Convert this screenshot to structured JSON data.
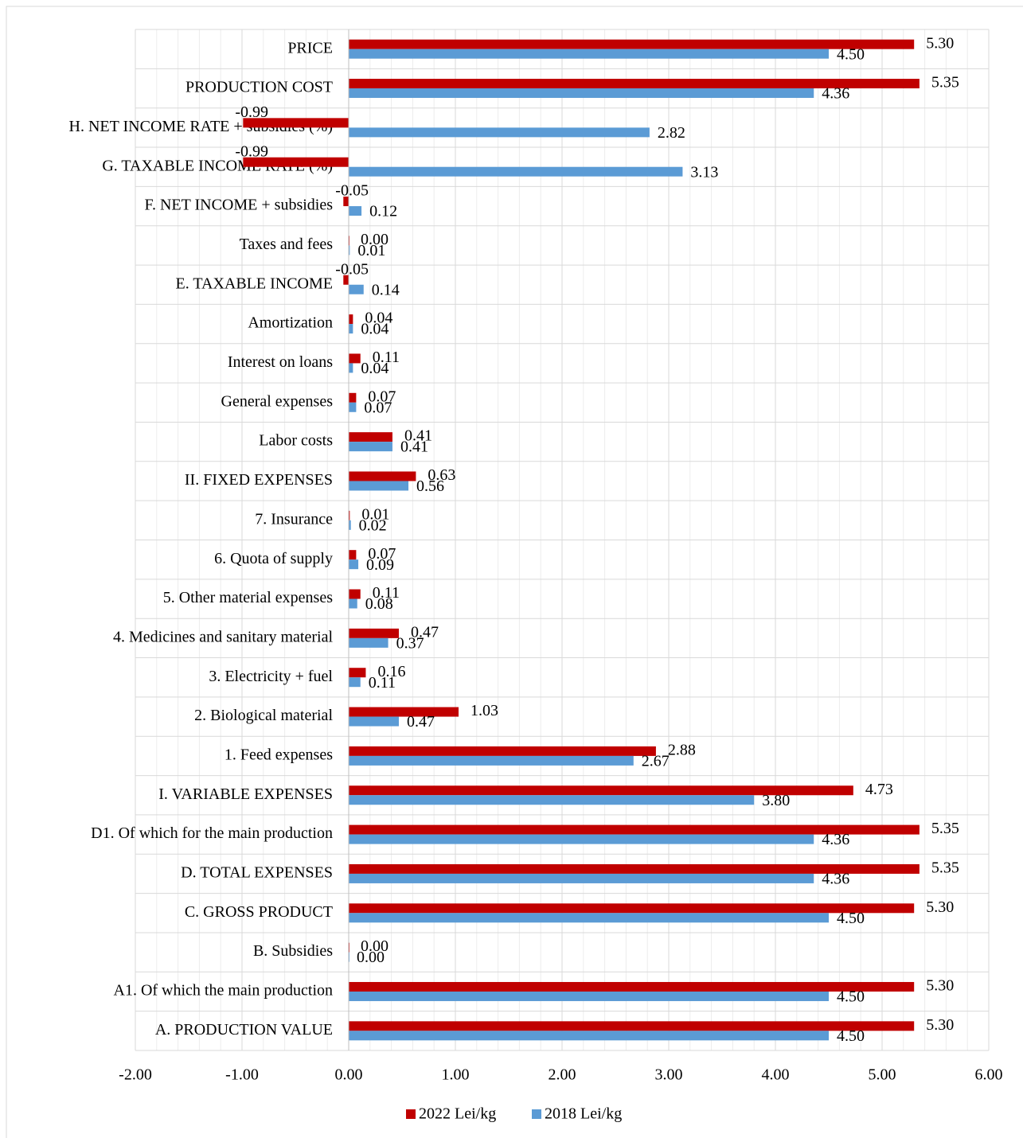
{
  "chart_data": {
    "type": "hbar",
    "categories": [
      "PRICE",
      "PRODUCTION COST",
      "H. NET INCOME RATE + subsidies (%)",
      "G. TAXABLE INCOME RATE (%)",
      "F. NET INCOME + subsidies",
      "Taxes and fees",
      "E. TAXABLE INCOME",
      "Amortization",
      "Interest on loans",
      "General expenses",
      "Labor costs",
      "II. FIXED EXPENSES",
      "7. Insurance",
      "6. Quota of supply",
      "5. Other material expenses",
      "4. Medicines and sanitary material",
      "3. Electricity + fuel",
      "2. Biological material",
      "1. Feed expenses",
      "I. VARIABLE EXPENSES",
      "D1. Of which for the main production",
      "D. TOTAL EXPENSES",
      "C. GROSS PRODUCT",
      "B. Subsidies",
      "A1. Of which the main production",
      "A. PRODUCTION VALUE"
    ],
    "series": [
      {
        "name": "2022 Lei/kg",
        "color": "#c00000",
        "values": [
          5.3,
          5.35,
          -0.99,
          -0.99,
          -0.05,
          0,
          -0.05,
          0.04,
          0.11,
          0.07,
          0.41,
          0.63,
          0.01,
          0.07,
          0.11,
          0.47,
          0.16,
          1.03,
          2.88,
          4.73,
          5.35,
          5.35,
          5.3,
          0,
          5.3,
          5.3
        ],
        "value_labels": [
          "5.30",
          "5.35",
          "-0.99",
          "-0.99",
          "-0.05",
          "0.00",
          "-0.05",
          "0.04",
          "0.11",
          "0.07",
          "0.41",
          "0.63",
          "0.01",
          "0.07",
          "0.11",
          "0.47",
          "0.16",
          "1.03",
          "2.88",
          "4.73",
          "5.35",
          "5.35",
          "5.30",
          "0.00",
          "5.30",
          "5.30"
        ]
      },
      {
        "name": "2018 Lei/kg",
        "color": "#5b9bd5",
        "values": [
          4.5,
          4.36,
          2.82,
          3.13,
          0.12,
          0.01,
          0.14,
          0.04,
          0.04,
          0.07,
          0.41,
          0.56,
          0.02,
          0.09,
          0.08,
          0.37,
          0.11,
          0.47,
          2.67,
          3.8,
          4.36,
          4.36,
          4.5,
          0,
          4.5,
          4.5
        ],
        "value_labels": [
          "4.50",
          "4.36",
          "2.82",
          "3.13",
          "0.12",
          "0.01",
          "0.14",
          "0.04",
          "0.04",
          "0.07",
          "0.41",
          "0.56",
          "0.02",
          "0.09",
          "0.08",
          "0.37",
          "0.11",
          "0.47",
          "2.67",
          "3.80",
          "4.36",
          "4.36",
          "4.50",
          "0.00",
          "4.50",
          "4.50"
        ]
      }
    ],
    "xlim": [
      -2,
      6
    ],
    "xticks": [
      {
        "value": -2,
        "label": "-2.00"
      },
      {
        "value": -1,
        "label": "-1.00"
      },
      {
        "value": 0,
        "label": "0.00"
      },
      {
        "value": 1,
        "label": "1.00"
      },
      {
        "value": 2,
        "label": "2.00"
      },
      {
        "value": 3,
        "label": "3.00"
      },
      {
        "value": 4,
        "label": "4.00"
      },
      {
        "value": 5,
        "label": "5.00"
      },
      {
        "value": 6,
        "label": "6.00"
      }
    ],
    "grid": true,
    "legend": "bottom"
  }
}
